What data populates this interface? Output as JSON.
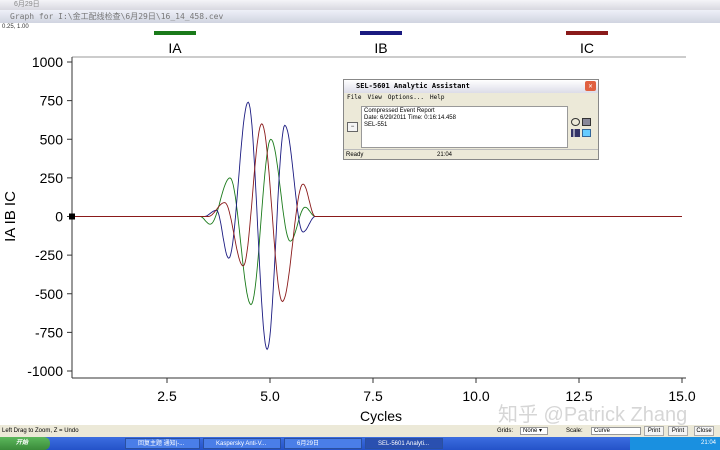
{
  "outer_window": {
    "title": "6月29日"
  },
  "window": {
    "title": "Graph for I:\\金工配线检查\\6月29日\\16_14_458.cev"
  },
  "coord_readout": "0.25, 1.00",
  "chart_data": {
    "type": "line",
    "xlabel": "Cycles",
    "ylabel": "IA IB IC",
    "xlim": [
      0.2,
      15
    ],
    "ylim": [
      -1000,
      1000
    ],
    "xticks": [
      "2.5",
      "5.0",
      "7.5",
      "10.0",
      "12.5",
      "15.0"
    ],
    "xtick_values": [
      2.5,
      5,
      7.5,
      10,
      12.5,
      15
    ],
    "yticks": [
      "1000",
      "750",
      "500",
      "250",
      "0",
      "-250",
      "-500",
      "-750",
      "-1000"
    ],
    "ytick_values": [
      1000,
      750,
      500,
      250,
      0,
      -250,
      -500,
      -750,
      -1000
    ],
    "grid": false,
    "legend": "top",
    "series": [
      {
        "name": "IA",
        "color": "#1a7a1a",
        "points": [
          [
            0.2,
            0
          ],
          [
            3.3,
            0
          ],
          [
            3.55,
            -50
          ],
          [
            4.03,
            250
          ],
          [
            4.54,
            -570
          ],
          [
            5.02,
            500
          ],
          [
            5.49,
            -160
          ],
          [
            5.85,
            60
          ],
          [
            6.1,
            0
          ],
          [
            15,
            0
          ]
        ]
      },
      {
        "name": "IB",
        "color": "#1a1a80",
        "points": [
          [
            0.2,
            0
          ],
          [
            3.4,
            0
          ],
          [
            3.7,
            40
          ],
          [
            4.0,
            -270
          ],
          [
            4.47,
            740
          ],
          [
            4.93,
            -860
          ],
          [
            5.36,
            590
          ],
          [
            5.8,
            -100
          ],
          [
            6.1,
            0
          ],
          [
            15,
            0
          ]
        ]
      },
      {
        "name": "IC",
        "color": "#8a1a1a",
        "points": [
          [
            0.2,
            0
          ],
          [
            3.5,
            0
          ],
          [
            3.9,
            90
          ],
          [
            4.35,
            -320
          ],
          [
            4.8,
            600
          ],
          [
            5.3,
            -550
          ],
          [
            5.8,
            210
          ],
          [
            6.1,
            0
          ],
          [
            15,
            0
          ]
        ]
      }
    ]
  },
  "dialog": {
    "title": "SEL-5601 Analytic Assistant",
    "menu": [
      "File",
      "View",
      "Options...",
      "Help"
    ],
    "lines": [
      "Compressed Event Report",
      "Date: 6/29/2011  Time: 0:16:14.458",
      "SEL-551"
    ],
    "status": "Ready",
    "time": "21:04"
  },
  "statusbar": {
    "hint": "Left Drag to Zoom, Z = Undo",
    "grids_label": "Grids:",
    "grids_value": "None",
    "scale_label": "Scale:",
    "scale_value": "Curve",
    "buttons": [
      "Print",
      "Print",
      "Close"
    ]
  },
  "taskbar": {
    "start": "开始",
    "items": [
      "回复主题 通知|-...",
      "Kaspersky Anti-V...",
      "6月29日",
      "SEL-5601 Analyti..."
    ],
    "clock": "21:04"
  },
  "watermark": "知乎 @Patrick Zhang"
}
